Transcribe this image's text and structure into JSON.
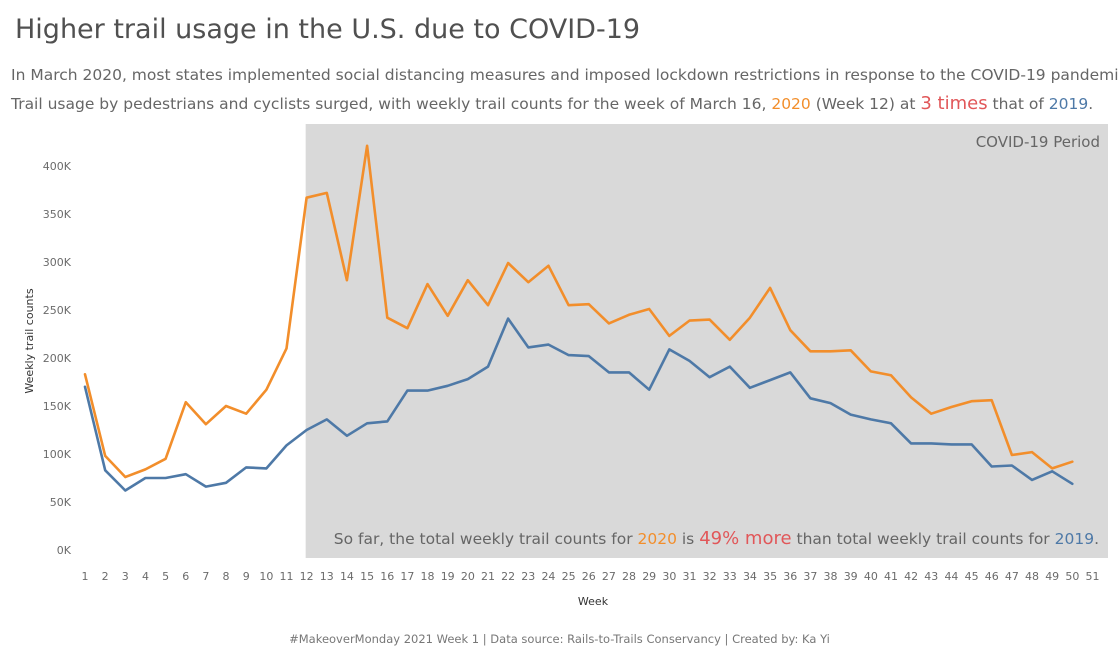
{
  "title": "Higher trail usage in the U.S. due to COVID-19",
  "subtitle": {
    "line1": "In March 2020, most states implemented social distancing measures and imposed lockdown restrictions in response to the COVID-19 pandemic.",
    "line2_a": "Trail usage by pedestrians and cyclists surged, with weekly trail counts for the week of March 16, ",
    "line2_y2020": "2020",
    "line2_b": " (Week 12) at ",
    "line2_highlight": "3 times",
    "line2_c": " that of ",
    "line2_y2019": "2019",
    "line2_d": "."
  },
  "covid_label": "COVID-19 Period",
  "note": {
    "a": "So far, the total weekly trail counts for ",
    "y2020": "2020",
    "b": " is ",
    "highlight": "49% more",
    "c": " than total weekly trail counts for ",
    "y2019": "2019",
    "d": "."
  },
  "footer": "#MakeoverMonday 2021 Week 1 | Data source: Rails-to-Trails Conservancy | Created by: Ka Yi",
  "colors": {
    "series_2020": "#f28e2b",
    "series_2019": "#4e79a7",
    "highlight": "#e15759",
    "covid_shading": "#d9d9d9"
  },
  "chart_data": {
    "type": "line",
    "xlabel": "Week",
    "ylabel": "Weekly trail counts",
    "x": [
      1,
      2,
      3,
      4,
      5,
      6,
      7,
      8,
      9,
      10,
      11,
      12,
      13,
      14,
      15,
      16,
      17,
      18,
      19,
      20,
      21,
      22,
      23,
      24,
      25,
      26,
      27,
      28,
      29,
      30,
      31,
      32,
      33,
      34,
      35,
      36,
      37,
      38,
      39,
      40,
      41,
      42,
      43,
      44,
      45,
      46,
      47,
      48,
      49,
      50
    ],
    "xticks": [
      1,
      2,
      3,
      4,
      5,
      6,
      7,
      8,
      9,
      10,
      11,
      12,
      13,
      14,
      15,
      16,
      17,
      18,
      19,
      20,
      21,
      22,
      23,
      24,
      25,
      26,
      27,
      28,
      29,
      30,
      31,
      32,
      33,
      34,
      35,
      36,
      37,
      38,
      39,
      40,
      41,
      42,
      43,
      44,
      45,
      46,
      47,
      48,
      49,
      50,
      51
    ],
    "xlim": [
      1,
      51
    ],
    "ylim": [
      0,
      420000
    ],
    "yticks": [
      0,
      50000,
      100000,
      150000,
      200000,
      250000,
      300000,
      350000,
      400000
    ],
    "ytick_labels": [
      "0K",
      "50K",
      "100K",
      "150K",
      "200K",
      "250K",
      "300K",
      "350K",
      "400K"
    ],
    "covid_period_start_week": 12,
    "series": [
      {
        "name": "2020",
        "color": "#f28e2b",
        "values": [
          183000,
          98000,
          76000,
          84000,
          95000,
          154000,
          131000,
          150000,
          142000,
          167000,
          210000,
          367000,
          372000,
          281000,
          421000,
          242000,
          231000,
          277000,
          244000,
          281000,
          255000,
          299000,
          279000,
          296000,
          255000,
          256000,
          236000,
          245000,
          251000,
          223000,
          239000,
          240000,
          219000,
          242000,
          273000,
          229000,
          207000,
          207000,
          208000,
          186000,
          182000,
          159000,
          142000,
          149000,
          155000,
          156000,
          99000,
          102000,
          85000,
          92000
        ]
      },
      {
        "name": "2019",
        "color": "#4e79a7",
        "values": [
          170000,
          83000,
          62000,
          75000,
          75000,
          79000,
          66000,
          70000,
          86000,
          85000,
          109000,
          125000,
          136000,
          119000,
          132000,
          134000,
          166000,
          166000,
          171000,
          178000,
          191000,
          241000,
          211000,
          214000,
          203000,
          202000,
          185000,
          185000,
          167000,
          209000,
          197000,
          180000,
          191000,
          169000,
          177000,
          185000,
          158000,
          153000,
          141000,
          136000,
          132000,
          111000,
          111000,
          110000,
          110000,
          87000,
          88000,
          73000,
          82000,
          69000
        ]
      }
    ]
  }
}
